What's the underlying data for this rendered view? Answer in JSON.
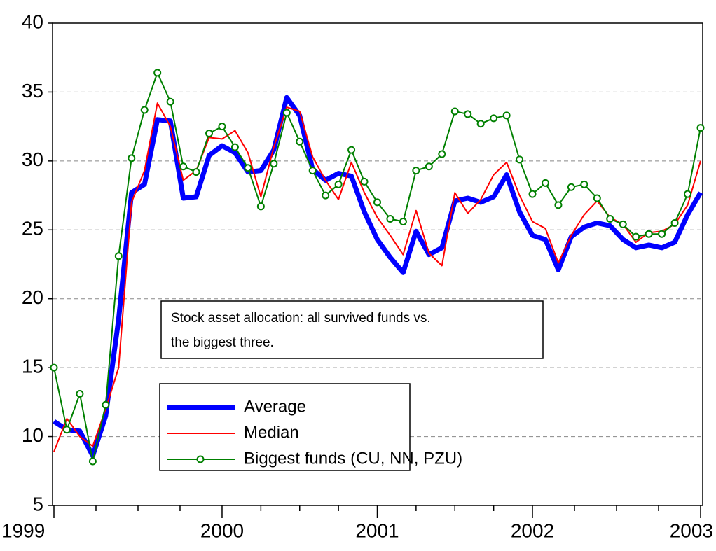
{
  "chart_data": {
    "type": "line",
    "categories": [
      "1999",
      null,
      null,
      null,
      null,
      null,
      null,
      null,
      null,
      null,
      null,
      null,
      null,
      "2000",
      null,
      null,
      null,
      null,
      null,
      null,
      null,
      null,
      null,
      null,
      null,
      "2001",
      null,
      null,
      null,
      null,
      null,
      null,
      null,
      null,
      null,
      null,
      null,
      "2002",
      null,
      null,
      null,
      null,
      null,
      null,
      null,
      null,
      null,
      null,
      null,
      null,
      "2003"
    ],
    "series": [
      {
        "name": "Average",
        "color": "#0000ff",
        "values": [
          11.1,
          10.5,
          10.4,
          8.6,
          11.5,
          18.5,
          27.7,
          28.3,
          33.0,
          32.9,
          27.3,
          27.4,
          30.4,
          31.1,
          30.6,
          29.2,
          29.3,
          30.8,
          34.6,
          33.3,
          29.4,
          28.6,
          29.1,
          28.9,
          26.3,
          24.3,
          23.0,
          21.9,
          24.9,
          23.2,
          23.7,
          27.1,
          27.3,
          27.0,
          27.4,
          29.0,
          26.3,
          24.6,
          24.3,
          22.1,
          24.5,
          25.2,
          25.5,
          25.3,
          24.3,
          23.7,
          23.9,
          23.7,
          24.1,
          26.1,
          27.7
        ]
      },
      {
        "name": "Median",
        "color": "#ff0000",
        "values": [
          8.9,
          11.3,
          10.0,
          9.3,
          12.0,
          15.0,
          27.0,
          29.3,
          34.2,
          32.5,
          28.6,
          29.3,
          31.7,
          31.6,
          32.2,
          30.6,
          27.4,
          31.0,
          33.9,
          33.6,
          30.3,
          28.6,
          27.2,
          29.9,
          27.7,
          25.9,
          24.6,
          23.2,
          26.4,
          23.3,
          22.4,
          27.7,
          26.2,
          27.2,
          29.0,
          29.9,
          27.5,
          25.6,
          25.1,
          22.6,
          24.6,
          26.1,
          27.1,
          25.9,
          25.4,
          24.1,
          24.8,
          24.9,
          25.4,
          26.8,
          30.0
        ]
      },
      {
        "name": "Biggest funds (CU, NN, PZU)",
        "color": "#008000",
        "values": [
          15.0,
          10.5,
          13.1,
          8.2,
          12.3,
          23.1,
          30.2,
          33.7,
          36.4,
          34.3,
          29.6,
          29.2,
          32.0,
          32.5,
          31.0,
          29.5,
          26.7,
          29.8,
          33.5,
          31.4,
          29.3,
          27.5,
          28.3,
          30.8,
          28.5,
          27.0,
          25.8,
          25.6,
          29.3,
          29.6,
          30.5,
          33.6,
          33.4,
          32.7,
          33.1,
          33.3,
          30.1,
          27.6,
          28.4,
          26.8,
          28.1,
          28.3,
          27.3,
          25.8,
          25.4,
          24.5,
          24.7,
          24.7,
          25.5,
          27.6,
          32.4
        ]
      }
    ],
    "ylim": [
      5,
      40
    ],
    "yticks": [
      5,
      10,
      15,
      20,
      25,
      30,
      35,
      40
    ],
    "grid": true,
    "annotation": [
      "Stock asset allocation: all survived funds vs.",
      "the biggest three."
    ]
  }
}
